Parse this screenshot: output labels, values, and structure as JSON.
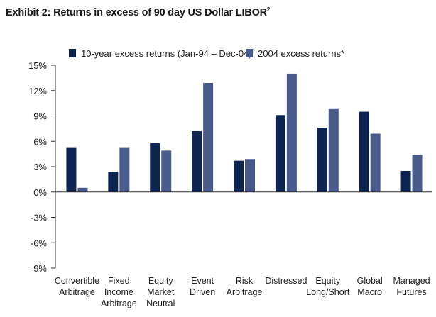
{
  "title": "Exhibit 2: Returns in excess of 90 day US Dollar LIBOR",
  "title_sup": "2",
  "chart_data": {
    "type": "bar",
    "categories": [
      [
        "Convertible",
        "Arbitrage"
      ],
      [
        "Fixed",
        "Income",
        "Arbitrage"
      ],
      [
        "Equity",
        "Market",
        "Neutral"
      ],
      [
        "Event",
        "Driven"
      ],
      [
        "Risk",
        "Arbitrage"
      ],
      [
        "Distressed"
      ],
      [
        "Equity",
        "Long/Short"
      ],
      [
        "Global",
        "Macro"
      ],
      [
        "Managed",
        "Futures"
      ]
    ],
    "series": [
      {
        "name": "10-year excess returns (Jan-94 – Dec-04)",
        "name_sup": "†",
        "color": "#0c2550",
        "values": [
          5.3,
          2.4,
          5.8,
          7.2,
          3.7,
          9.1,
          7.6,
          9.5,
          2.5
        ]
      },
      {
        "name": "2004 excess returns*",
        "name_sup": "",
        "color": "#4a5a8a",
        "values": [
          0.5,
          5.3,
          4.9,
          12.9,
          3.9,
          14.0,
          9.9,
          6.9,
          4.4
        ]
      }
    ],
    "y_ticks": [
      "15%",
      "12%",
      "9%",
      "6%",
      "3%",
      "0%",
      "-3%",
      "-6%",
      "-9%"
    ],
    "ylim": [
      -9,
      15
    ],
    "legend_position": "top"
  }
}
